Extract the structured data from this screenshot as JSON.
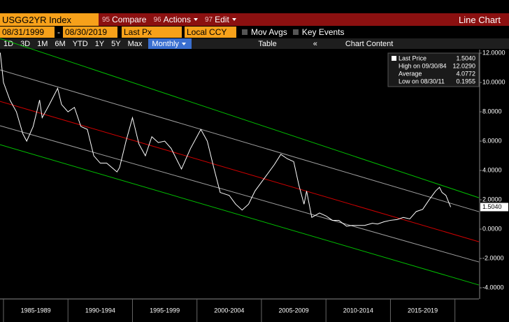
{
  "toolbar": {
    "ticker": "USGG2YR Index",
    "buttons": [
      {
        "num": "95",
        "label": "Compare"
      },
      {
        "num": "96",
        "label": "Actions"
      },
      {
        "num": "97",
        "label": "Edit"
      }
    ],
    "view": "Line Chart"
  },
  "settings": {
    "start": "08/31/1999",
    "range_sep": "-",
    "end": "08/30/2019",
    "field": "Last Px",
    "currency": "Local CCY",
    "mov_avgs": "Mov Avgs",
    "key_events": "Key Events"
  },
  "ranges": [
    "1D",
    "3D",
    "1M",
    "6M",
    "YTD",
    "1Y",
    "5Y",
    "Max"
  ],
  "period": "Monthly",
  "table": "Table",
  "collapse": "«",
  "chart_content": "Chart Content",
  "chart_data": {
    "type": "line",
    "grid": false,
    "x": [
      1984.75,
      1985.0,
      1985.5,
      1986.0,
      1986.5,
      1986.8,
      1987.3,
      1987.8,
      1988.0,
      1988.5,
      1989.2,
      1989.5,
      1990.0,
      1990.5,
      1991.0,
      1991.5,
      1992.0,
      1992.5,
      1993.0,
      1993.8,
      1994.0,
      1994.5,
      1995.0,
      1995.5,
      1996.0,
      1996.5,
      1997.0,
      1997.5,
      1998.0,
      1998.8,
      1999.5,
      2000.3,
      2000.8,
      2001.3,
      2001.8,
      2002.5,
      2003.0,
      2003.5,
      2004.0,
      2004.5,
      2005.0,
      2005.5,
      2006.0,
      2006.5,
      2007.0,
      2007.5,
      2007.9,
      2008.3,
      2008.5,
      2008.9,
      2009.5,
      2010.0,
      2010.5,
      2011.0,
      2011.6,
      2012.0,
      2013.0,
      2013.6,
      2014.0,
      2014.5,
      2015.0,
      2015.5,
      2016.0,
      2016.5,
      2017.0,
      2017.5,
      2018.0,
      2018.5,
      2018.8,
      2019.0,
      2019.3,
      2019.67
    ],
    "series": [
      {
        "name": "Last Price",
        "color": "#ffffff",
        "values": [
          12.03,
          10.0,
          8.8,
          8.0,
          6.5,
          6.0,
          7.0,
          8.8,
          7.6,
          8.4,
          9.6,
          8.5,
          8.0,
          8.3,
          7.0,
          6.8,
          5.0,
          4.5,
          4.5,
          3.9,
          4.2,
          6.0,
          7.6,
          5.8,
          5.0,
          6.3,
          5.9,
          6.0,
          5.5,
          4.1,
          5.5,
          6.8,
          6.0,
          4.2,
          2.5,
          2.3,
          1.7,
          1.3,
          1.7,
          2.6,
          3.2,
          3.8,
          4.4,
          5.1,
          4.8,
          4.6,
          3.0,
          1.7,
          2.6,
          0.8,
          1.1,
          0.9,
          0.6,
          0.6,
          0.2,
          0.25,
          0.25,
          0.4,
          0.35,
          0.5,
          0.6,
          0.65,
          0.8,
          0.7,
          1.2,
          1.35,
          2.0,
          2.6,
          2.85,
          2.5,
          2.3,
          1.504
        ]
      }
    ],
    "trend_lines": [
      {
        "color": "#00c000",
        "x": [
          1984.73,
          2021.86
        ],
        "values": [
          13.0,
          2.14
        ]
      },
      {
        "color": "#a0a0a0",
        "x": [
          1984.73,
          2021.86
        ],
        "values": [
          10.86,
          1.19
        ]
      },
      {
        "color": "#d00000",
        "x": [
          1984.73,
          2021.86
        ],
        "values": [
          8.71,
          -0.86
        ]
      },
      {
        "color": "#a0a0a0",
        "x": [
          1984.73,
          2021.86
        ],
        "values": [
          7.05,
          -2.24
        ]
      },
      {
        "color": "#00c000",
        "x": [
          1984.73,
          2021.86
        ],
        "values": [
          5.76,
          -3.81
        ]
      }
    ],
    "last_label": "1.5040",
    "legend": [
      {
        "label": "Last Price",
        "value": "1.5040"
      },
      {
        "label": "High on 09/30/84",
        "value": "12.0290"
      },
      {
        "label": "Average",
        "value": "4.0772"
      },
      {
        "label": "Low on 08/30/11",
        "value": "0.1955"
      }
    ],
    "xlim": [
      1984.73,
      2021.86
    ],
    "xticks": [
      {
        "value": 1987.5,
        "label": "1985-1989"
      },
      {
        "value": 1992.5,
        "label": "1990-1994"
      },
      {
        "value": 1997.5,
        "label": "1995-1999"
      },
      {
        "value": 2002.5,
        "label": "2000-2004"
      },
      {
        "value": 2007.5,
        "label": "2005-2009"
      },
      {
        "value": 2012.5,
        "label": "2010-2014"
      },
      {
        "value": 2017.5,
        "label": "2015-2019"
      }
    ],
    "ylim": [
      -4.76,
      12.24
    ],
    "yticks": [
      {
        "value": 12,
        "label": "12.0000"
      },
      {
        "value": 10,
        "label": "10.0000"
      },
      {
        "value": 8,
        "label": "8.0000"
      },
      {
        "value": 6,
        "label": "6.0000"
      },
      {
        "value": 4,
        "label": "4.0000"
      },
      {
        "value": 2,
        "label": "2.0000"
      },
      {
        "value": 0,
        "label": "0.0000"
      },
      {
        "value": -2,
        "label": "-2.0000"
      },
      {
        "value": -4,
        "label": "-4.0000"
      }
    ]
  }
}
